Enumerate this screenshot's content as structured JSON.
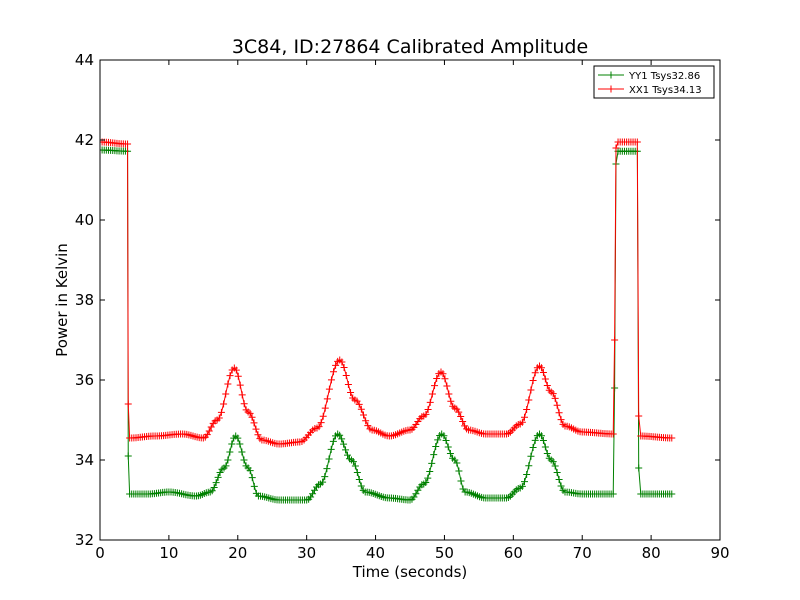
{
  "chart_data": {
    "type": "line",
    "title": "3C84, ID:27864 Calibrated Amplitude",
    "xlabel": "Time (seconds)",
    "ylabel": "Power in Kelvin",
    "xlim": [
      0,
      90
    ],
    "ylim": [
      32,
      44
    ],
    "xticks": [
      "0",
      "10",
      "20",
      "30",
      "40",
      "50",
      "60",
      "70",
      "80",
      "90"
    ],
    "yticks": [
      "32",
      "34",
      "36",
      "38",
      "40",
      "42",
      "44"
    ],
    "grid": false,
    "legend_position": "top-right",
    "marker": "+",
    "series": [
      {
        "name": "YY1 Tsys32.86",
        "color": "#008000",
        "points": [
          [
            0,
            41.75
          ],
          [
            4.0,
            41.72
          ],
          [
            4.1,
            34.1
          ],
          [
            4.3,
            33.15
          ],
          [
            7,
            33.15
          ],
          [
            10,
            33.2
          ],
          [
            14,
            33.1
          ],
          [
            16,
            33.2
          ],
          [
            18,
            33.8
          ],
          [
            19.7,
            34.6
          ],
          [
            21.5,
            33.8
          ],
          [
            23,
            33.1
          ],
          [
            26,
            33.0
          ],
          [
            30,
            33.0
          ],
          [
            32,
            33.4
          ],
          [
            34.5,
            34.65
          ],
          [
            36.5,
            34.0
          ],
          [
            38.5,
            33.2
          ],
          [
            42,
            33.05
          ],
          [
            45,
            33.0
          ],
          [
            47,
            33.4
          ],
          [
            49.6,
            34.65
          ],
          [
            51.5,
            34.0
          ],
          [
            53,
            33.2
          ],
          [
            56,
            33.05
          ],
          [
            59,
            33.05
          ],
          [
            61,
            33.3
          ],
          [
            63.8,
            34.65
          ],
          [
            65.5,
            34.0
          ],
          [
            67.5,
            33.2
          ],
          [
            70,
            33.15
          ],
          [
            74.5,
            33.15
          ],
          [
            74.7,
            35.8
          ],
          [
            74.9,
            41.4
          ],
          [
            75.2,
            41.72
          ],
          [
            78,
            41.72
          ],
          [
            78.2,
            33.8
          ],
          [
            78.5,
            33.15
          ],
          [
            83,
            33.15
          ]
        ]
      },
      {
        "name": "XX1 Tsys34.13",
        "color": "#ff0000",
        "points": [
          [
            0,
            41.95
          ],
          [
            4.0,
            41.9
          ],
          [
            4.1,
            35.4
          ],
          [
            4.3,
            34.55
          ],
          [
            8,
            34.6
          ],
          [
            12,
            34.65
          ],
          [
            15,
            34.55
          ],
          [
            17,
            35.0
          ],
          [
            19.5,
            36.3
          ],
          [
            21.5,
            35.2
          ],
          [
            23.5,
            34.5
          ],
          [
            26,
            34.4
          ],
          [
            29,
            34.45
          ],
          [
            31.5,
            34.8
          ],
          [
            34.8,
            36.5
          ],
          [
            37,
            35.5
          ],
          [
            39.5,
            34.75
          ],
          [
            42,
            34.6
          ],
          [
            45,
            34.75
          ],
          [
            47,
            35.1
          ],
          [
            49.5,
            36.2
          ],
          [
            51.5,
            35.3
          ],
          [
            53.5,
            34.75
          ],
          [
            56,
            34.65
          ],
          [
            59,
            34.65
          ],
          [
            61,
            34.9
          ],
          [
            63.8,
            36.35
          ],
          [
            65.5,
            35.7
          ],
          [
            67.5,
            34.85
          ],
          [
            70,
            34.7
          ],
          [
            74.5,
            34.65
          ],
          [
            74.7,
            37.0
          ],
          [
            74.9,
            41.8
          ],
          [
            75.2,
            41.95
          ],
          [
            78,
            41.95
          ],
          [
            78.2,
            35.1
          ],
          [
            78.5,
            34.6
          ],
          [
            83,
            34.55
          ]
        ]
      }
    ]
  }
}
